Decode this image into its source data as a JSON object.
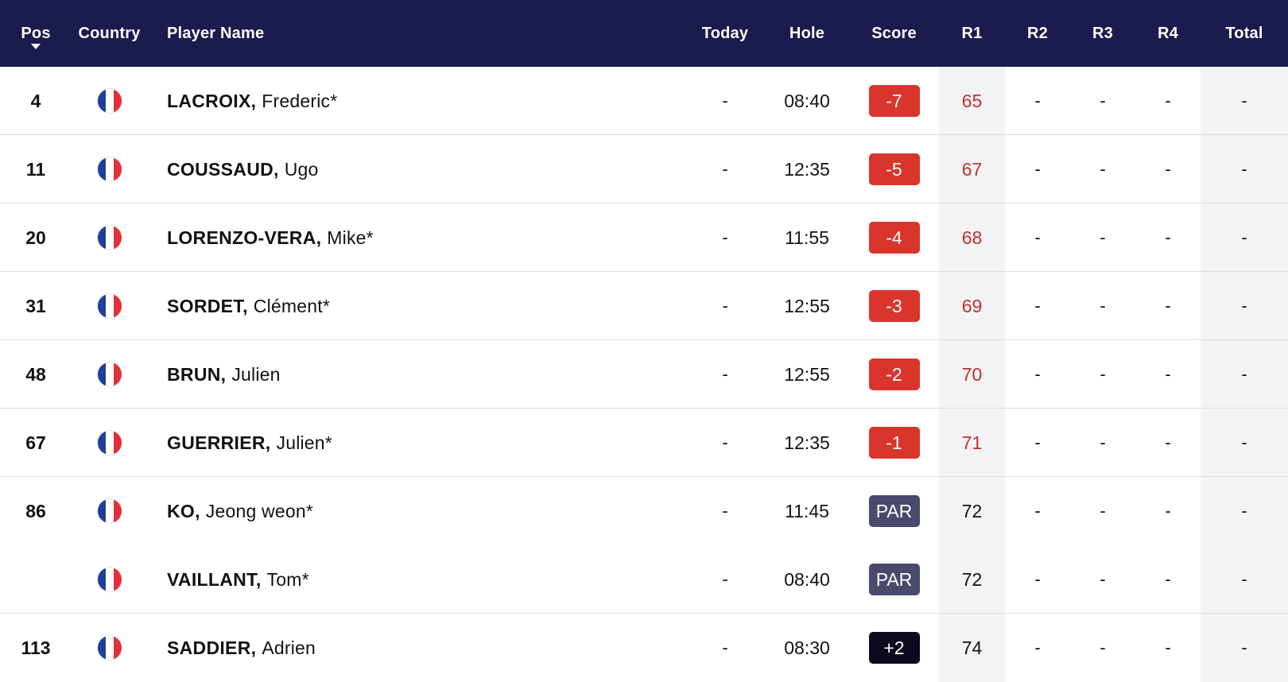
{
  "header": {
    "pos": "Pos",
    "country": "Country",
    "player_name": "Player Name",
    "today": "Today",
    "hole": "Hole",
    "score": "Score",
    "r1": "R1",
    "r2": "R2",
    "r3": "R3",
    "r4": "R4",
    "total": "Total"
  },
  "colors": {
    "header_bg": "#1c1b4d",
    "under_par": "#d9352c",
    "par": "#4a4a6e",
    "over_par": "#0c0c1e",
    "r1_under_text": "#c4302b",
    "flag_blue": "#1f3f9a",
    "flag_white": "#ffffff",
    "flag_red": "#e2303b"
  },
  "rows": [
    {
      "pos": "4",
      "country": "France",
      "last": "LACROIX,",
      "first": "Frederic*",
      "today": "-",
      "hole": "08:40",
      "score": "-7",
      "score_type": "under",
      "r1": "65",
      "r2": "-",
      "r3": "-",
      "r4": "-",
      "total": "-"
    },
    {
      "pos": "11",
      "country": "France",
      "last": "COUSSAUD,",
      "first": "Ugo",
      "today": "-",
      "hole": "12:35",
      "score": "-5",
      "score_type": "under",
      "r1": "67",
      "r2": "-",
      "r3": "-",
      "r4": "-",
      "total": "-"
    },
    {
      "pos": "20",
      "country": "France",
      "last": "LORENZO-VERA,",
      "first": "Mike*",
      "today": "-",
      "hole": "11:55",
      "score": "-4",
      "score_type": "under",
      "r1": "68",
      "r2": "-",
      "r3": "-",
      "r4": "-",
      "total": "-"
    },
    {
      "pos": "31",
      "country": "France",
      "last": "SORDET,",
      "first": "Clément*",
      "today": "-",
      "hole": "12:55",
      "score": "-3",
      "score_type": "under",
      "r1": "69",
      "r2": "-",
      "r3": "-",
      "r4": "-",
      "total": "-"
    },
    {
      "pos": "48",
      "country": "France",
      "last": "BRUN,",
      "first": "Julien",
      "today": "-",
      "hole": "12:55",
      "score": "-2",
      "score_type": "under",
      "r1": "70",
      "r2": "-",
      "r3": "-",
      "r4": "-",
      "total": "-"
    },
    {
      "pos": "67",
      "country": "France",
      "last": "GUERRIER,",
      "first": "Julien*",
      "today": "-",
      "hole": "12:35",
      "score": "-1",
      "score_type": "under",
      "r1": "71",
      "r2": "-",
      "r3": "-",
      "r4": "-",
      "total": "-"
    },
    {
      "pos": "86",
      "country": "France",
      "last": "KO,",
      "first": "Jeong weon*",
      "today": "-",
      "hole": "11:45",
      "score": "PAR",
      "score_type": "par",
      "r1": "72",
      "r2": "-",
      "r3": "-",
      "r4": "-",
      "total": "-"
    },
    {
      "pos": "",
      "country": "France",
      "last": "VAILLANT,",
      "first": "Tom*",
      "today": "-",
      "hole": "08:40",
      "score": "PAR",
      "score_type": "par",
      "r1": "72",
      "r2": "-",
      "r3": "-",
      "r4": "-",
      "total": "-"
    },
    {
      "pos": "113",
      "country": "France",
      "last": "SADDIER,",
      "first": "Adrien",
      "today": "-",
      "hole": "08:30",
      "score": "+2",
      "score_type": "over",
      "r1": "74",
      "r2": "-",
      "r3": "-",
      "r4": "-",
      "total": "-"
    }
  ]
}
